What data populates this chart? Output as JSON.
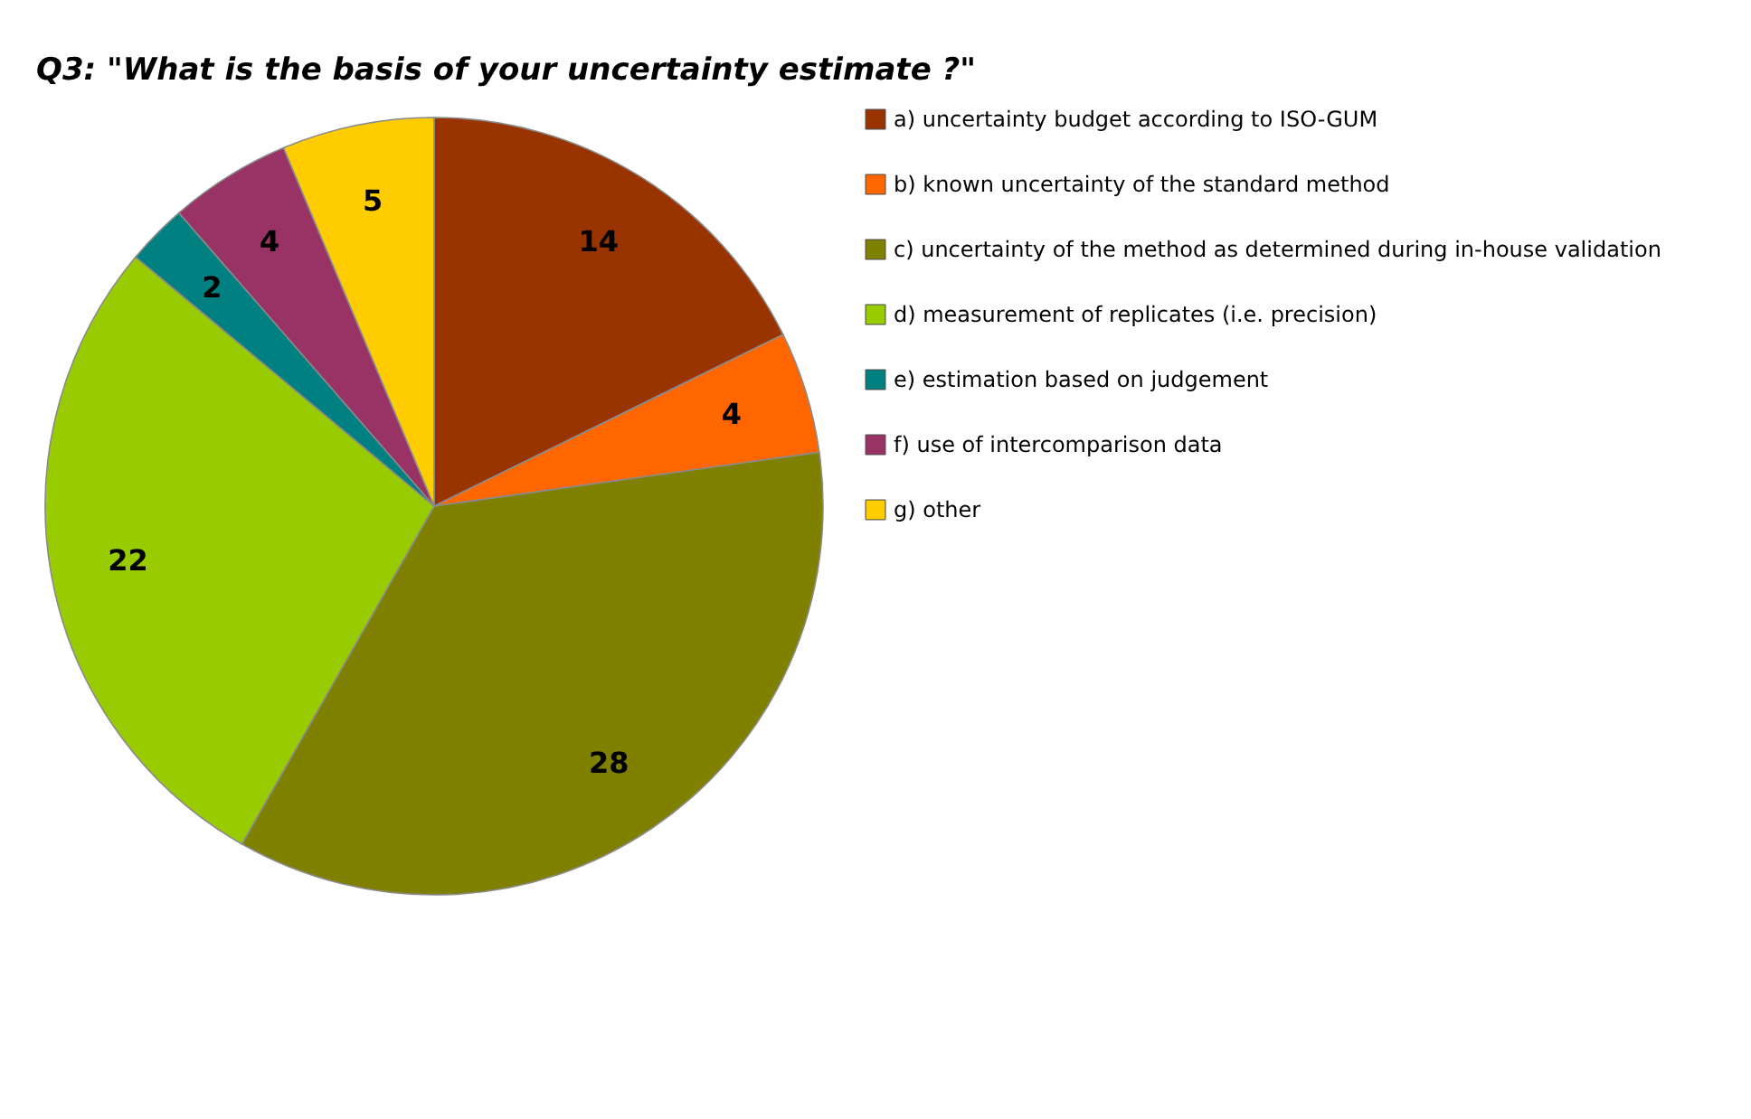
{
  "chart_data": {
    "type": "pie",
    "title": "Q3: \"What is the basis of your uncertainty estimate ?\"",
    "categories": [
      "a) uncertainty budget according to ISO-GUM",
      "b) known uncertainty of the standard method",
      "c) uncertainty of the method as determined during in-house validation",
      "d) measurement of replicates (i.e. precision)",
      "e) estimation based on judgement",
      "f) use of intercomparison data",
      "g) other"
    ],
    "values": [
      14,
      4,
      28,
      22,
      2,
      4,
      5
    ],
    "colors": [
      "#993300",
      "#ff6600",
      "#808000",
      "#99cc00",
      "#008080",
      "#993366",
      "#ffcc00"
    ],
    "data_labels": true,
    "legend": "right"
  }
}
